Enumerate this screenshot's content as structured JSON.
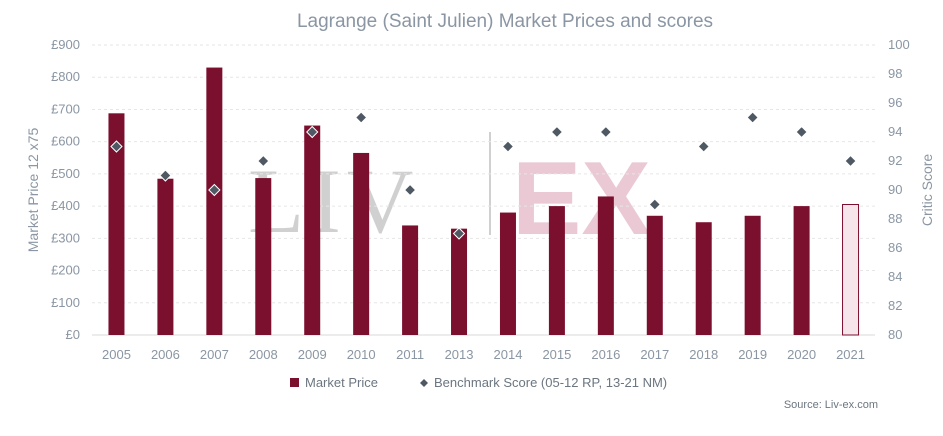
{
  "chart_data": {
    "type": "bar",
    "title": "Lagrange (Saint Julien) Market Prices and scores",
    "ylabel": "Market Price 12 x75",
    "y2label": "Critic Score",
    "categories": [
      "2005",
      "2006",
      "2007",
      "2008",
      "2009",
      "2010",
      "2011",
      "2013",
      "2014",
      "2015",
      "2016",
      "2017",
      "2018",
      "2019",
      "2020",
      "2021"
    ],
    "ylim": [
      0,
      900
    ],
    "y2lim": [
      80,
      100
    ],
    "yticks": [
      "£0",
      "£100",
      "£200",
      "£300",
      "£400",
      "£500",
      "£600",
      "£700",
      "£800",
      "£900"
    ],
    "y2ticks": [
      "80",
      "82",
      "84",
      "86",
      "88",
      "90",
      "92",
      "94",
      "96",
      "98",
      "100"
    ],
    "series": [
      {
        "name": "Market Price",
        "type": "bar",
        "color": "#7a0f2e",
        "values": [
          688,
          485,
          830,
          487,
          650,
          565,
          340,
          330,
          380,
          400,
          430,
          370,
          350,
          370,
          400,
          405
        ],
        "highlight_last": {
          "fill": "#f6e6ec",
          "stroke": "#7a0f2e"
        }
      },
      {
        "name": "Benchmark Score (05-12 RP, 13-21 NM)",
        "type": "scatter",
        "marker": "diamond",
        "color": "#4f5964",
        "values": [
          93,
          91,
          90,
          92,
          94,
          95,
          90,
          87,
          93,
          94,
          94,
          89,
          93,
          95,
          94,
          92
        ]
      }
    ],
    "grid": true,
    "legend_position": "bottom-center",
    "source": "Source: Liv-ex.com",
    "watermark": {
      "left": "LIV",
      "right": "EX"
    }
  }
}
